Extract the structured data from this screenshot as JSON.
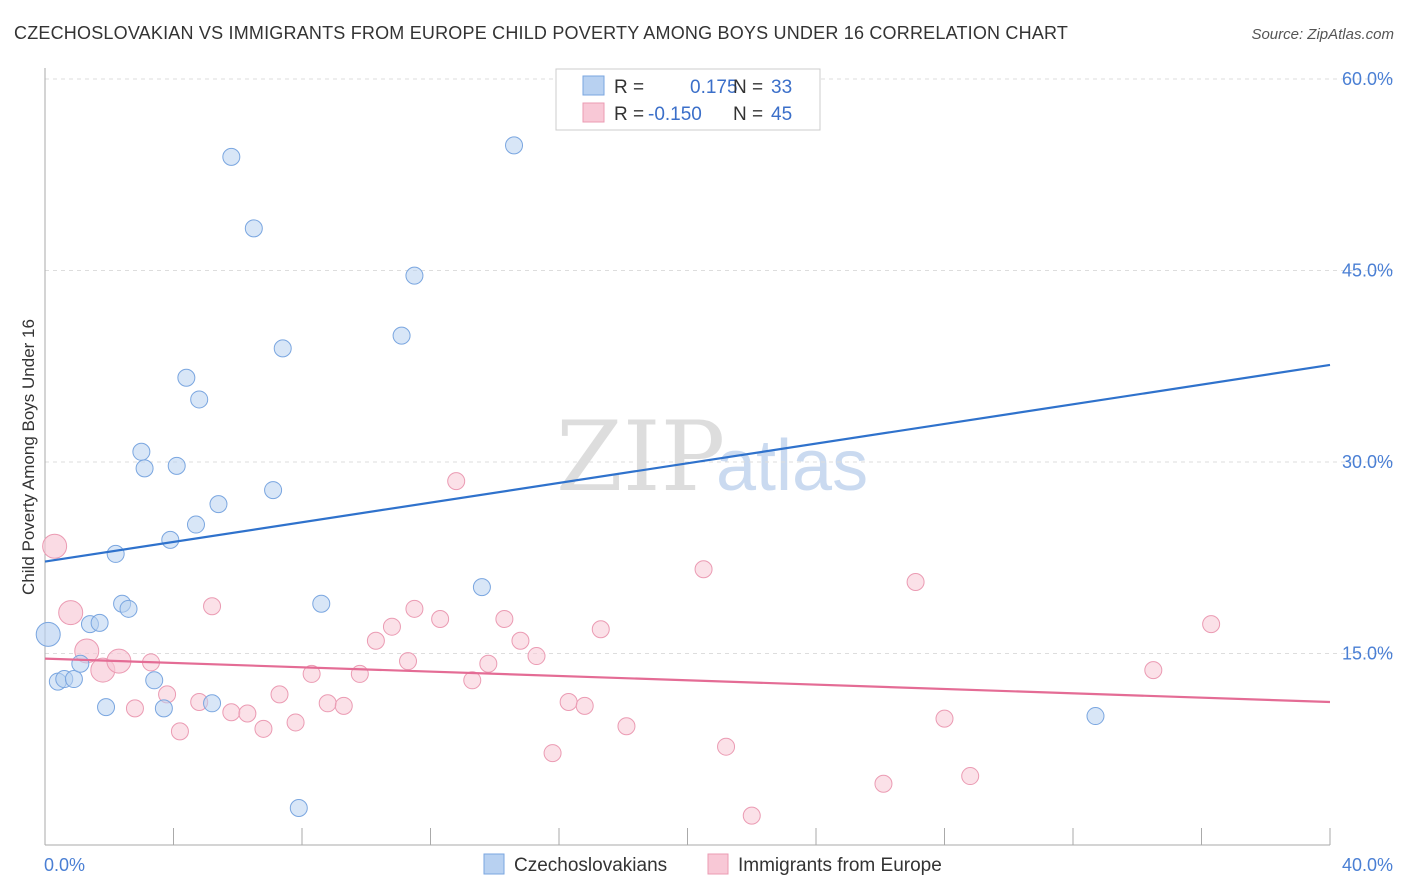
{
  "title": "CZECHOSLOVAKIAN VS IMMIGRANTS FROM EUROPE CHILD POVERTY AMONG BOYS UNDER 16 CORRELATION CHART",
  "source": "Source: ZipAtlas.com",
  "watermark": {
    "part1": "ZIP",
    "part2": "atlas"
  },
  "legend": {
    "rows": [
      {
        "r_label": "R =",
        "r_value": "0.175",
        "n_label": "N =",
        "n_value": "33"
      },
      {
        "r_label": "R =",
        "r_value": "-0.150",
        "n_label": "N =",
        "n_value": "45"
      }
    ]
  },
  "bottom_legend": [
    "Czechoslovakians",
    "Immigrants from Europe"
  ],
  "colors": {
    "blue_fill": "#b8d1f1",
    "blue_stroke": "#7aa6e0",
    "blue_line": "#2f72cc",
    "pink_fill": "#f8c8d6",
    "pink_stroke": "#eb9bb3",
    "pink_line": "#e46c95",
    "grid": "#dddddd",
    "tick_text": "#4a7fd4"
  },
  "chart_data": {
    "type": "scatter",
    "title": "CZECHOSLOVAKIAN VS IMMIGRANTS FROM EUROPE CHILD POVERTY AMONG BOYS UNDER 16 CORRELATION CHART",
    "xlabel": "",
    "ylabel": "Child Poverty Among Boys Under 16",
    "xlim": [
      0,
      40
    ],
    "ylim": [
      0,
      60
    ],
    "x_tick_labels": [
      "0.0%",
      "40.0%"
    ],
    "y_ticks": [
      15,
      30,
      45,
      60
    ],
    "y_tick_labels": [
      "15.0%",
      "30.0%",
      "45.0%",
      "60.0%"
    ],
    "grid": true,
    "series": [
      {
        "name": "Czechoslovakians",
        "r": 0.175,
        "n": 33,
        "trend": {
          "x": [
            0,
            40
          ],
          "y": [
            22.2,
            37.6
          ]
        },
        "points": [
          {
            "x": 0.1,
            "y": 16.5,
            "big": true
          },
          {
            "x": 0.4,
            "y": 12.8
          },
          {
            "x": 0.6,
            "y": 13.0
          },
          {
            "x": 0.9,
            "y": 13.0
          },
          {
            "x": 1.1,
            "y": 14.2
          },
          {
            "x": 1.4,
            "y": 17.3
          },
          {
            "x": 1.7,
            "y": 17.4
          },
          {
            "x": 1.9,
            "y": 10.8
          },
          {
            "x": 2.2,
            "y": 22.8
          },
          {
            "x": 2.4,
            "y": 18.9
          },
          {
            "x": 2.6,
            "y": 18.5
          },
          {
            "x": 3.0,
            "y": 30.8
          },
          {
            "x": 3.1,
            "y": 29.5
          },
          {
            "x": 3.4,
            "y": 12.9
          },
          {
            "x": 3.7,
            "y": 10.7
          },
          {
            "x": 3.9,
            "y": 23.9
          },
          {
            "x": 4.1,
            "y": 29.7
          },
          {
            "x": 4.4,
            "y": 36.6
          },
          {
            "x": 4.7,
            "y": 25.1
          },
          {
            "x": 4.8,
            "y": 34.9
          },
          {
            "x": 5.2,
            "y": 11.1
          },
          {
            "x": 5.4,
            "y": 26.7
          },
          {
            "x": 5.8,
            "y": 53.9
          },
          {
            "x": 6.5,
            "y": 48.3
          },
          {
            "x": 7.1,
            "y": 27.8
          },
          {
            "x": 7.4,
            "y": 38.9
          },
          {
            "x": 7.9,
            "y": 2.9
          },
          {
            "x": 8.6,
            "y": 18.9
          },
          {
            "x": 11.1,
            "y": 39.9
          },
          {
            "x": 11.5,
            "y": 44.6
          },
          {
            "x": 13.6,
            "y": 20.2
          },
          {
            "x": 14.6,
            "y": 54.8
          },
          {
            "x": 32.7,
            "y": 10.1
          }
        ]
      },
      {
        "name": "Immigrants from Europe",
        "r": -0.15,
        "n": 45,
        "trend": {
          "x": [
            0,
            40
          ],
          "y": [
            14.6,
            11.2
          ]
        },
        "points": [
          {
            "x": 0.3,
            "y": 23.4,
            "big": true
          },
          {
            "x": 0.8,
            "y": 18.2,
            "big": true
          },
          {
            "x": 1.3,
            "y": 15.2,
            "big": true
          },
          {
            "x": 1.8,
            "y": 13.7,
            "big": true
          },
          {
            "x": 2.3,
            "y": 14.4,
            "big": true
          },
          {
            "x": 2.8,
            "y": 10.7
          },
          {
            "x": 3.3,
            "y": 14.3
          },
          {
            "x": 3.8,
            "y": 11.8
          },
          {
            "x": 4.2,
            "y": 8.9
          },
          {
            "x": 4.8,
            "y": 11.2
          },
          {
            "x": 5.2,
            "y": 18.7
          },
          {
            "x": 5.8,
            "y": 10.4
          },
          {
            "x": 6.3,
            "y": 10.3
          },
          {
            "x": 6.8,
            "y": 9.1
          },
          {
            "x": 7.3,
            "y": 11.8
          },
          {
            "x": 7.8,
            "y": 9.6
          },
          {
            "x": 8.3,
            "y": 13.4
          },
          {
            "x": 8.8,
            "y": 11.1
          },
          {
            "x": 9.3,
            "y": 10.9
          },
          {
            "x": 9.8,
            "y": 13.4
          },
          {
            "x": 10.3,
            "y": 16.0
          },
          {
            "x": 10.8,
            "y": 17.1
          },
          {
            "x": 11.3,
            "y": 14.4
          },
          {
            "x": 11.5,
            "y": 18.5
          },
          {
            "x": 12.3,
            "y": 17.7
          },
          {
            "x": 12.8,
            "y": 28.5
          },
          {
            "x": 13.3,
            "y": 12.9
          },
          {
            "x": 13.8,
            "y": 14.2
          },
          {
            "x": 14.3,
            "y": 17.7
          },
          {
            "x": 14.8,
            "y": 16.0
          },
          {
            "x": 15.3,
            "y": 14.8
          },
          {
            "x": 15.8,
            "y": 7.2
          },
          {
            "x": 16.3,
            "y": 11.2
          },
          {
            "x": 16.8,
            "y": 10.9
          },
          {
            "x": 17.3,
            "y": 16.9
          },
          {
            "x": 18.1,
            "y": 9.3
          },
          {
            "x": 20.5,
            "y": 21.6
          },
          {
            "x": 21.2,
            "y": 7.7
          },
          {
            "x": 22.0,
            "y": 2.3
          },
          {
            "x": 26.1,
            "y": 4.8
          },
          {
            "x": 27.1,
            "y": 20.6
          },
          {
            "x": 28.0,
            "y": 9.9
          },
          {
            "x": 28.8,
            "y": 5.4
          },
          {
            "x": 34.5,
            "y": 13.7
          },
          {
            "x": 36.3,
            "y": 17.3
          }
        ]
      }
    ]
  }
}
